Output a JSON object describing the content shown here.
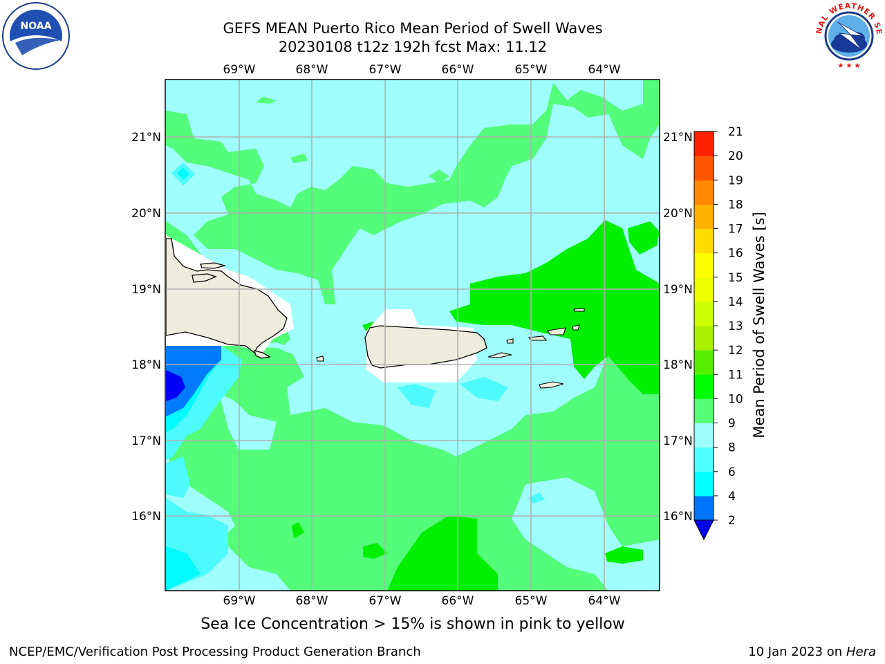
{
  "header": {
    "title_line1": "GEFS MEAN Puerto Rico Mean Period of Swell Waves",
    "title_line2": "20230108 t12z 192h fcst   Max: 11.12"
  },
  "logos": {
    "left": {
      "icon": "noaa-logo",
      "text": "NOAA"
    },
    "right": {
      "icon": "nws-logo",
      "text": "NATIONAL WEATHER SERVICE"
    }
  },
  "map": {
    "lon_labels": [
      "69°W",
      "68°W",
      "67°W",
      "66°W",
      "65°W",
      "64°W"
    ],
    "lat_labels": [
      "21°N",
      "20°N",
      "19°N",
      "18°N",
      "17°N",
      "16°N"
    ],
    "land_color": "#eeecdc",
    "ocean_colors": {
      "c8_9": "#9ffffc",
      "c9_10": "#53fc79",
      "c10_11": "#00f000",
      "c6_8": "#4dfafd",
      "c4_6": "#00fbff",
      "c2_4": "#007bff",
      "below_2": "#0000f6"
    }
  },
  "colorbar": {
    "label": "Mean Period of Swell Waves [s]",
    "ticks": [
      "2",
      "4",
      "6",
      "8",
      "9",
      "10",
      "11",
      "12",
      "13",
      "14",
      "15",
      "16",
      "17",
      "18",
      "19",
      "20",
      "21"
    ],
    "colors": [
      "#0076ff",
      "#00ffff",
      "#4dffff",
      "#9cfffd",
      "#57ff78",
      "#00ff00",
      "#55ee00",
      "#aaf000",
      "#ccff00",
      "#eeff00",
      "#ffff00",
      "#ffdd00",
      "#ffb200",
      "#ff8800",
      "#ff5500",
      "#ff2200"
    ],
    "under_color": "#0000ee"
  },
  "footer": {
    "note": "Sea Ice Concentration > 15% is shown in pink to yellow",
    "credit": "NCEP/EMC/Verification Post Processing Product Generation Branch",
    "date_prefix": "10 Jan 2023 on ",
    "date_host": "Hera"
  }
}
